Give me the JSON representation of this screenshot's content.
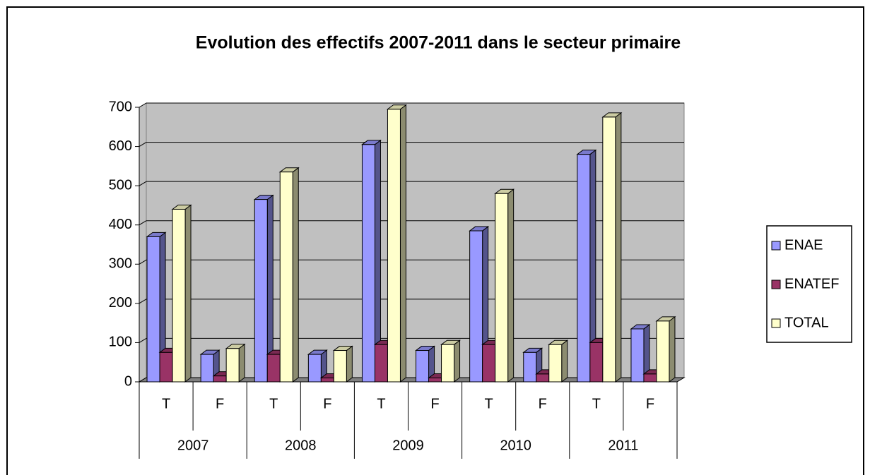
{
  "chart_data": {
    "type": "bar3d",
    "title": "Evolution des effectifs 2007-2011 dans le secteur primaire",
    "categories": [
      "T",
      "F",
      "T",
      "F",
      "T",
      "F",
      "T",
      "F",
      "T",
      "F"
    ],
    "groups": [
      "2007",
      "2008",
      "2009",
      "2010",
      "2011"
    ],
    "series": [
      {
        "name": "ENAE",
        "color": "#9999ff",
        "values": [
          370,
          70,
          465,
          70,
          605,
          80,
          385,
          75,
          580,
          135
        ]
      },
      {
        "name": "ENATEF",
        "color": "#993366",
        "values": [
          75,
          15,
          70,
          10,
          95,
          10,
          95,
          20,
          100,
          20
        ]
      },
      {
        "name": "TOTAL",
        "color": "#ffffcc",
        "values": [
          440,
          85,
          535,
          80,
          695,
          95,
          480,
          95,
          675,
          155
        ]
      }
    ],
    "ylim": [
      0,
      700
    ],
    "yticks": [
      0,
      100,
      200,
      300,
      400,
      500,
      600,
      700
    ],
    "grid": true,
    "wall_color": "#c0c0c0",
    "legend": "right"
  }
}
